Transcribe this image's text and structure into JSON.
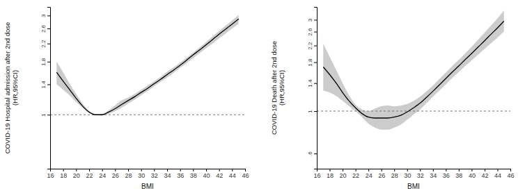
{
  "chart_data": [
    {
      "type": "line",
      "ylabel": [
        "COVID-19 Hospital admission after 2nd dose",
        "(HR,95%CI)"
      ],
      "xlabel": "BMI",
      "log": "y",
      "color": "#000000",
      "band_color": "#cccccc",
      "reference_line": 1,
      "xlim": [
        16,
        46
      ],
      "xticks": [
        16,
        18,
        20,
        22,
        24,
        26,
        28,
        30,
        32,
        34,
        36,
        38,
        40,
        42,
        44,
        46
      ],
      "ylim": [
        0.55,
        3.3
      ],
      "yticks": [
        1,
        1.4,
        1.8,
        2.2,
        2.6,
        3
      ],
      "x": [
        17,
        18,
        19,
        20,
        21,
        22,
        23,
        24,
        25,
        26,
        27,
        28,
        29,
        30,
        31,
        32,
        33,
        34,
        35,
        36,
        37,
        38,
        39,
        40,
        41,
        42,
        43,
        44,
        45
      ],
      "values": [
        1.6,
        1.45,
        1.32,
        1.2,
        1.1,
        1.03,
        1.0,
        1.0,
        1.03,
        1.07,
        1.12,
        1.17,
        1.22,
        1.28,
        1.34,
        1.41,
        1.48,
        1.56,
        1.64,
        1.73,
        1.83,
        1.94,
        2.05,
        2.17,
        2.3,
        2.44,
        2.58,
        2.73,
        2.89
      ],
      "ci_lower": [
        1.4,
        1.32,
        1.24,
        1.15,
        1.08,
        1.02,
        1.0,
        0.99,
        1.01,
        1.04,
        1.08,
        1.13,
        1.18,
        1.24,
        1.3,
        1.37,
        1.44,
        1.51,
        1.59,
        1.68,
        1.77,
        1.87,
        1.98,
        2.09,
        2.2,
        2.33,
        2.46,
        2.6,
        2.74
      ],
      "ci_upper": [
        1.8,
        1.6,
        1.41,
        1.26,
        1.13,
        1.04,
        1.0,
        1.01,
        1.05,
        1.11,
        1.17,
        1.21,
        1.26,
        1.32,
        1.38,
        1.45,
        1.52,
        1.61,
        1.69,
        1.78,
        1.88,
        1.99,
        2.11,
        2.24,
        2.38,
        2.53,
        2.68,
        2.84,
        3.02
      ]
    },
    {
      "type": "line",
      "ylabel": [
        "COVID-19 Death after 2nd dose",
        "(HR,95%CI)"
      ],
      "xlabel": "BMI",
      "log": "y",
      "color": "#000000",
      "band_color": "#cccccc",
      "reference_line": 1,
      "xlim": [
        16,
        46
      ],
      "xticks": [
        16,
        18,
        20,
        22,
        24,
        26,
        28,
        30,
        32,
        34,
        36,
        38,
        40,
        42,
        44,
        46
      ],
      "ylim": [
        0.5,
        3.5
      ],
      "yticks": [
        {
          "value": 0.6,
          "label": ".6"
        },
        1,
        1.4,
        1.8,
        2.2,
        2.6,
        3
      ],
      "x": [
        17,
        18,
        19,
        20,
        21,
        22,
        23,
        24,
        25,
        26,
        27,
        28,
        29,
        30,
        31,
        32,
        33,
        34,
        35,
        36,
        37,
        38,
        39,
        40,
        41,
        42,
        43,
        44,
        45
      ],
      "values": [
        1.7,
        1.55,
        1.4,
        1.25,
        1.13,
        1.04,
        0.97,
        0.93,
        0.92,
        0.92,
        0.92,
        0.93,
        0.95,
        0.99,
        1.04,
        1.1,
        1.18,
        1.27,
        1.37,
        1.48,
        1.6,
        1.72,
        1.86,
        2.0,
        2.16,
        2.33,
        2.52,
        2.72,
        2.95
      ],
      "ci_lower": [
        1.28,
        1.25,
        1.2,
        1.13,
        1.06,
        1.0,
        0.93,
        0.86,
        0.82,
        0.8,
        0.8,
        0.82,
        0.85,
        0.9,
        0.96,
        1.02,
        1.1,
        1.19,
        1.28,
        1.38,
        1.49,
        1.6,
        1.72,
        1.84,
        1.97,
        2.11,
        2.26,
        2.42,
        2.6
      ],
      "ci_upper": [
        2.25,
        1.92,
        1.64,
        1.4,
        1.21,
        1.08,
        1.02,
        1.0,
        1.03,
        1.06,
        1.07,
        1.06,
        1.07,
        1.09,
        1.13,
        1.19,
        1.27,
        1.36,
        1.47,
        1.59,
        1.72,
        1.85,
        2.0,
        2.17,
        2.36,
        2.57,
        2.8,
        3.05,
        3.35
      ]
    }
  ]
}
